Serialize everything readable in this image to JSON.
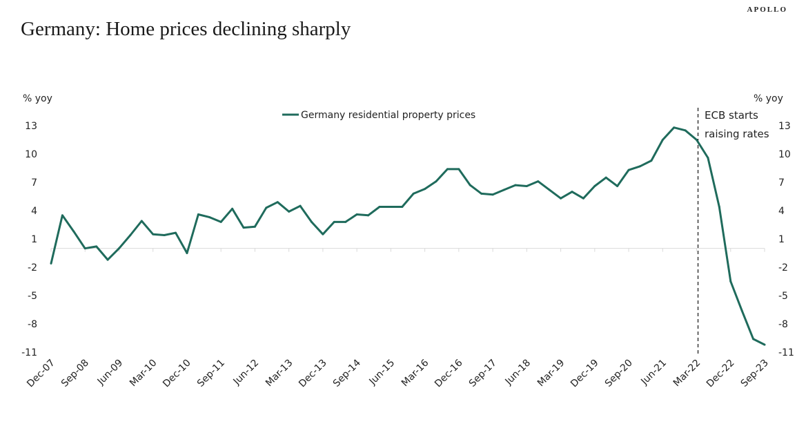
{
  "header": {
    "title": "Germany: Home prices declining sharply",
    "brand": "APOLLO"
  },
  "chart_data": {
    "type": "line",
    "title": "Germany: Home prices declining sharply",
    "xlabel": "",
    "ylabel_left": "% yoy",
    "ylabel_right": "% yoy",
    "ylim": [
      -11,
      13
    ],
    "yticks": [
      13,
      10,
      7,
      4,
      1,
      -2,
      -5,
      -8,
      -11
    ],
    "grid": false,
    "legend_position": "top-center",
    "line_color": "#1f6b5c",
    "x": [
      "Dec-07",
      "Mar-08",
      "Jun-08",
      "Sep-08",
      "Dec-08",
      "Mar-09",
      "Jun-09",
      "Sep-09",
      "Dec-09",
      "Mar-10",
      "Jun-10",
      "Sep-10",
      "Dec-10",
      "Mar-11",
      "Jun-11",
      "Sep-11",
      "Dec-11",
      "Mar-12",
      "Jun-12",
      "Sep-12",
      "Dec-12",
      "Mar-13",
      "Jun-13",
      "Sep-13",
      "Dec-13",
      "Mar-14",
      "Jun-14",
      "Sep-14",
      "Dec-14",
      "Mar-15",
      "Jun-15",
      "Sep-15",
      "Dec-15",
      "Mar-16",
      "Jun-16",
      "Sep-16",
      "Dec-16",
      "Mar-17",
      "Jun-17",
      "Sep-17",
      "Dec-17",
      "Mar-18",
      "Jun-18",
      "Sep-18",
      "Dec-18",
      "Mar-19",
      "Jun-19",
      "Sep-19",
      "Dec-19",
      "Mar-20",
      "Jun-20",
      "Sep-20",
      "Dec-20",
      "Mar-21",
      "Jun-21",
      "Sep-21",
      "Dec-21",
      "Mar-22",
      "Jun-22",
      "Sep-22",
      "Dec-22",
      "Mar-23",
      "Jun-23",
      "Sep-23"
    ],
    "xtick_labels": [
      "Dec-07",
      "Sep-08",
      "Jun-09",
      "Mar-10",
      "Dec-10",
      "Sep-11",
      "Jun-12",
      "Mar-13",
      "Dec-13",
      "Sep-14",
      "Jun-15",
      "Mar-16",
      "Dec-16",
      "Sep-17",
      "Jun-18",
      "Mar-19",
      "Dec-19",
      "Sep-20",
      "Jun-21",
      "Mar-22",
      "Dec-22",
      "Sep-23"
    ],
    "series": [
      {
        "name": "Germany residential property prices",
        "values": [
          -1.6,
          3.5,
          1.8,
          0.0,
          0.2,
          -1.2,
          0.0,
          1.4,
          2.9,
          1.5,
          1.4,
          1.65,
          -0.5,
          3.6,
          3.3,
          2.8,
          4.2,
          2.2,
          2.3,
          4.3,
          4.9,
          3.9,
          4.5,
          2.8,
          1.5,
          2.8,
          2.8,
          3.6,
          3.5,
          4.4,
          4.4,
          4.4,
          5.8,
          6.3,
          7.1,
          8.4,
          8.4,
          6.7,
          5.8,
          5.7,
          6.2,
          6.7,
          6.6,
          7.1,
          6.2,
          5.3,
          6.0,
          5.3,
          6.6,
          7.5,
          6.6,
          8.3,
          8.7,
          9.3,
          11.5,
          12.8,
          12.5,
          11.5,
          9.6,
          4.4,
          -3.5,
          -6.6,
          -9.6,
          -10.2
        ]
      }
    ],
    "annotations": [
      {
        "type": "vertical-dashed-line",
        "x": "Mar-22",
        "text_lines": [
          "ECB starts",
          "raising rates"
        ]
      }
    ]
  }
}
